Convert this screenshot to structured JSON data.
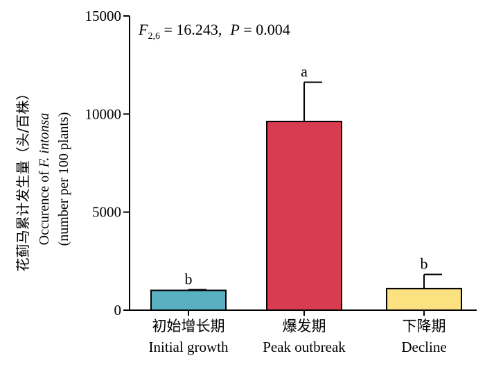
{
  "chart_data": {
    "type": "bar",
    "title": "",
    "annotation": {
      "stat_symbol": "F",
      "stat_subscript": "2,6",
      "stat_value": " = 16.243,",
      "p_symbol": "P",
      "p_value": " = 0.004"
    },
    "ylabel_cn": "花蓟马累计发生量（头/百株）",
    "ylabel_en_prefix": "Occurence of ",
    "ylabel_en_species": "F. intonsa",
    "ylabel_en_units": "(number per 100 plants)",
    "xlabel": "",
    "ylim": [
      0,
      15000
    ],
    "yticks": [
      0,
      5000,
      10000,
      15000
    ],
    "ytick_labels": [
      "0",
      "5000",
      "10000",
      "15000"
    ],
    "categories_cn": [
      "初始增长期",
      "爆发期",
      "下降期"
    ],
    "categories": [
      "Initial growth",
      "Peak outbreak",
      "Decline"
    ],
    "values": [
      1010,
      9620,
      1100
    ],
    "errors": [
      40,
      2000,
      720
    ],
    "significance_letters": [
      "b",
      "a",
      "b"
    ],
    "colors": [
      "#5AAFC0",
      "#D93C50",
      "#FCE181"
    ]
  }
}
